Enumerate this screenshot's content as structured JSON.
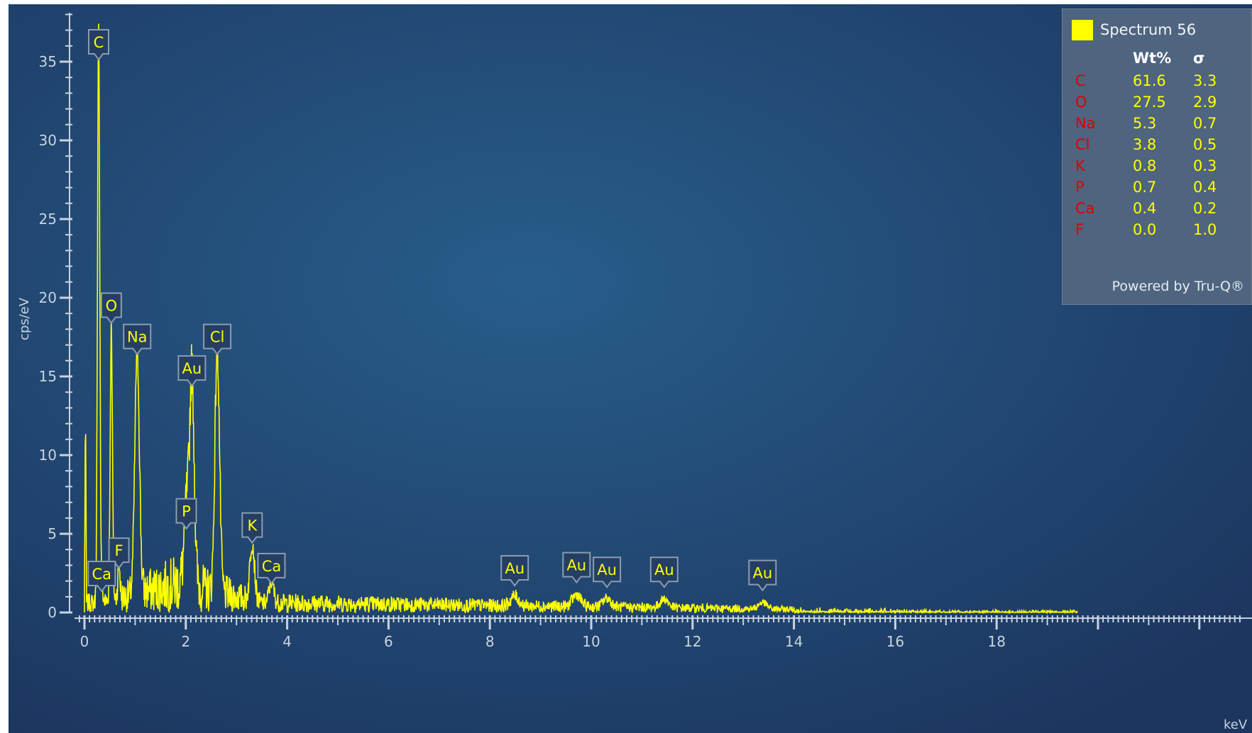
{
  "chart_data": {
    "type": "line",
    "xlabel": "keV",
    "ylabel": "cps/eV",
    "xlim": [
      0,
      20
    ],
    "ylim": [
      0,
      38
    ],
    "x_ticks": [
      0,
      2,
      4,
      6,
      8,
      10,
      12,
      14,
      16,
      18
    ],
    "y_ticks": [
      0,
      5,
      10,
      15,
      20,
      25,
      30,
      35
    ],
    "series_color": "#ffff00",
    "background_color": "#1e3c64",
    "peaks": [
      {
        "label": "C",
        "x": 0.28,
        "y": 36.5
      },
      {
        "label": "O",
        "x": 0.53,
        "y": 17.5
      },
      {
        "label": "Na",
        "x": 1.04,
        "y": 15.6
      },
      {
        "label": "Au",
        "x": 2.12,
        "y": 13.6
      },
      {
        "label": "Cl",
        "x": 2.62,
        "y": 15.6
      },
      {
        "label": "P",
        "x": 2.01,
        "y": 4.7
      },
      {
        "label": "K",
        "x": 3.31,
        "y": 3.8
      },
      {
        "label": "F",
        "x": 0.68,
        "y": 2.2
      },
      {
        "label": "Ca",
        "x": 0.34,
        "y": 0.9
      },
      {
        "label": "Ca",
        "x": 3.69,
        "y": 1.4
      },
      {
        "label": "Au",
        "x": 8.49,
        "y": 0.9
      },
      {
        "label": "Au",
        "x": 9.71,
        "y": 1.1
      },
      {
        "label": "Au",
        "x": 10.31,
        "y": 0.8
      },
      {
        "label": "Au",
        "x": 11.44,
        "y": 0.8
      },
      {
        "label": "Au",
        "x": 13.38,
        "y": 0.6
      }
    ]
  },
  "legend": {
    "title": "Spectrum 56",
    "headers": {
      "element": "",
      "wt": "Wt%",
      "sigma": "σ"
    },
    "rows": [
      {
        "element": "C",
        "wt": "61.6",
        "sigma": "3.3"
      },
      {
        "element": "O",
        "wt": "27.5",
        "sigma": "2.9"
      },
      {
        "element": "Na",
        "wt": "5.3",
        "sigma": "0.7"
      },
      {
        "element": "Cl",
        "wt": "3.8",
        "sigma": "0.5"
      },
      {
        "element": "K",
        "wt": "0.8",
        "sigma": "0.3"
      },
      {
        "element": "P",
        "wt": "0.7",
        "sigma": "0.4"
      },
      {
        "element": "Ca",
        "wt": "0.4",
        "sigma": "0.2"
      },
      {
        "element": "F",
        "wt": "0.0",
        "sigma": "1.0"
      }
    ],
    "footer": "Powered by Tru-Q®"
  }
}
